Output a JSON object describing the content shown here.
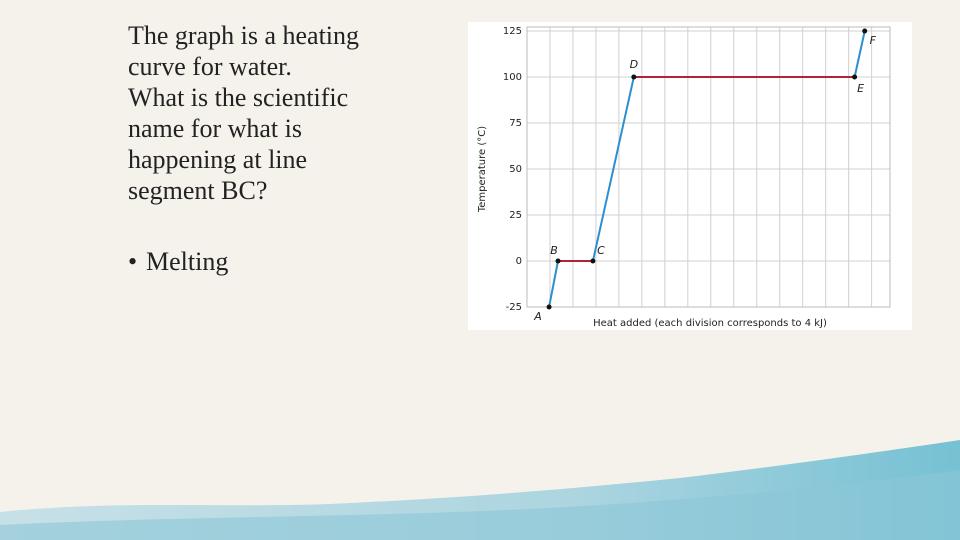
{
  "slide": {
    "question_lines": [
      "The graph is a heating",
      "curve for water.",
      "What is the scientific",
      "name for what is",
      "happening at line",
      "segment BC?"
    ],
    "answer": "Melting"
  },
  "chart_data": {
    "type": "line",
    "x_label": "Heat added (each division corresponds to 4 kJ)",
    "y_label": "Temperature (°C)",
    "x": [
      0.96,
      1.35,
      2.87,
      4.65,
      14.26,
      14.7
    ],
    "series": [
      {
        "values": [
          -25,
          0,
          0,
          100,
          100,
          125
        ]
      }
    ],
    "point_labels": [
      "A",
      "B",
      "C",
      "D",
      "E",
      "F"
    ],
    "segment_colors": [
      "#2b8fd1",
      "#b0243a",
      "#2b8fd1",
      "#b0243a",
      "#2b8fd1"
    ],
    "xlim": [
      0,
      15.8
    ],
    "xticks": [
      1,
      2,
      3,
      4,
      5,
      6,
      7,
      8,
      9,
      10,
      11,
      12,
      13,
      14,
      15
    ],
    "ylim": [
      -25,
      125
    ],
    "yticks": [
      -25,
      0,
      25,
      50,
      75,
      100,
      125
    ],
    "grid": true
  }
}
